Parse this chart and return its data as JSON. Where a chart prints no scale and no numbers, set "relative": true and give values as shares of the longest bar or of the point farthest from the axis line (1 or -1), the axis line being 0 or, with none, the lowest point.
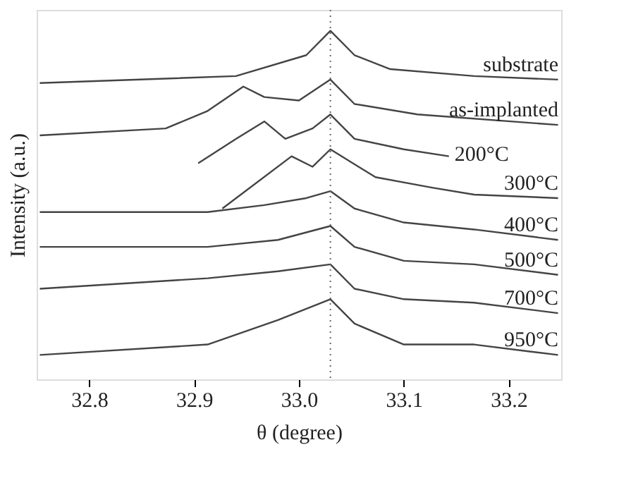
{
  "chart_data": {
    "type": "line",
    "relative": true,
    "xlabel": "θ (degree)",
    "ylabel": "Intensity (a.u.)",
    "xlim": [
      32.75,
      33.25
    ],
    "xticks": [
      {
        "value": 32.8,
        "label": "32.8"
      },
      {
        "value": 32.9,
        "label": "32.9"
      },
      {
        "value": 33.0,
        "label": "33.0"
      },
      {
        "value": 33.1,
        "label": "33.1"
      },
      {
        "value": 33.2,
        "label": "33.2"
      }
    ],
    "grid": false,
    "legend": false,
    "marker": "none",
    "line_style": "solid",
    "ref_lines": [
      {
        "axis": "x",
        "value": 33.03,
        "color": "#666666",
        "line_style": "dotted"
      }
    ],
    "series": [
      {
        "name": "substrate",
        "color": "#444444",
        "x": [
          32.753,
          32.94,
          33.007,
          33.03,
          33.053,
          33.087,
          33.167,
          33.247
        ],
        "values": [
          0.85,
          0.87,
          0.93,
          1.0,
          0.93,
          0.89,
          0.87,
          0.86
        ]
      },
      {
        "name": "as-implanted",
        "color": "#444444",
        "x": [
          32.753,
          32.873,
          32.913,
          32.947,
          32.967,
          33.0,
          33.03,
          33.053,
          33.113,
          33.247
        ],
        "values": [
          0.7,
          0.72,
          0.77,
          0.84,
          0.81,
          0.8,
          0.86,
          0.79,
          0.76,
          0.73
        ]
      },
      {
        "name": "200°C",
        "color": "#444444",
        "x": [
          32.904,
          32.94,
          32.967,
          32.987,
          33.013,
          33.03,
          33.053,
          33.1,
          33.143
        ],
        "values": [
          0.62,
          0.69,
          0.74,
          0.69,
          0.72,
          0.76,
          0.69,
          0.66,
          0.64
        ]
      },
      {
        "name": "300°C",
        "color": "#444444",
        "x": [
          32.927,
          32.993,
          33.013,
          33.03,
          33.073,
          33.127,
          33.167,
          33.247
        ],
        "values": [
          0.49,
          0.64,
          0.61,
          0.66,
          0.58,
          0.55,
          0.53,
          0.52
        ]
      },
      {
        "name": "400°C",
        "color": "#444444",
        "x": [
          32.753,
          32.913,
          32.967,
          33.007,
          33.03,
          33.053,
          33.1,
          33.167,
          33.247
        ],
        "values": [
          0.48,
          0.48,
          0.5,
          0.52,
          0.54,
          0.49,
          0.45,
          0.43,
          0.4
        ]
      },
      {
        "name": "500°C",
        "color": "#444444",
        "x": [
          32.753,
          32.913,
          32.98,
          33.03,
          33.053,
          33.1,
          33.167,
          33.247
        ],
        "values": [
          0.38,
          0.38,
          0.4,
          0.44,
          0.38,
          0.34,
          0.33,
          0.3
        ]
      },
      {
        "name": "700°C",
        "color": "#444444",
        "x": [
          32.753,
          32.913,
          32.98,
          33.03,
          33.053,
          33.1,
          33.167,
          33.247
        ],
        "values": [
          0.26,
          0.29,
          0.31,
          0.33,
          0.26,
          0.23,
          0.22,
          0.19
        ]
      },
      {
        "name": "950°C",
        "color": "#444444",
        "x": [
          32.753,
          32.913,
          32.98,
          33.03,
          33.053,
          33.1,
          33.167,
          33.22,
          33.247
        ],
        "values": [
          0.07,
          0.1,
          0.17,
          0.23,
          0.16,
          0.1,
          0.1,
          0.08,
          0.07
        ]
      }
    ]
  }
}
